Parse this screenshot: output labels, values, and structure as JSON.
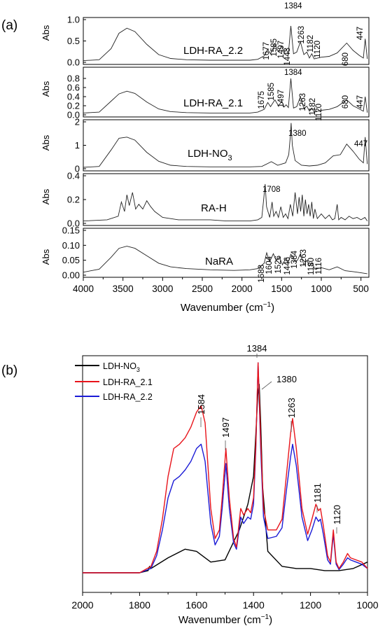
{
  "chart_data": [
    {
      "type": "line",
      "panel_label": "(a)",
      "xlabel": "Wavenumber (cm",
      "xlabel_sup": "−1",
      "xlabel_close": ")",
      "x_ticks": [
        4000,
        3500,
        3000,
        2500,
        2000,
        1500,
        1000,
        500
      ],
      "xlim": [
        4000,
        400
      ],
      "panels": [
        {
          "name": "LDH-RA_2.2",
          "label": "LDH-RA_2.2",
          "label_sub": "",
          "ylabel": "Abs",
          "ylim": [
            0,
            1.0
          ],
          "yticks": [
            "0.0",
            "0.5",
            "1.0"
          ],
          "ytick_values": [
            0,
            0.5,
            1.0
          ],
          "annotations": [
            "1677",
            "1585",
            "1497",
            "1443",
            "1384",
            "1263",
            "1182",
            "1120",
            "680",
            "447"
          ],
          "series": {
            "x": [
              4000,
              3800,
              3650,
              3550,
              3450,
              3350,
              3200,
              3050,
              2900,
              2700,
              2400,
              2100,
              1900,
              1800,
              1720,
              1677,
              1640,
              1585,
              1540,
              1497,
              1470,
              1443,
              1415,
              1384,
              1350,
              1310,
              1263,
              1220,
              1182,
              1150,
              1120,
              1090,
              1000,
              900,
              800,
              680,
              600,
              520,
              470,
              447,
              420
            ],
            "y": [
              0.04,
              0.06,
              0.32,
              0.68,
              0.8,
              0.72,
              0.42,
              0.18,
              0.09,
              0.06,
              0.05,
              0.05,
              0.05,
              0.07,
              0.15,
              0.3,
              0.2,
              0.42,
              0.25,
              0.38,
              0.22,
              0.3,
              0.2,
              0.85,
              0.2,
              0.24,
              0.48,
              0.18,
              0.24,
              0.1,
              0.2,
              0.08,
              0.12,
              0.14,
              0.22,
              0.45,
              0.28,
              0.16,
              0.1,
              0.55,
              0.08
            ]
          }
        },
        {
          "name": "LDH-RA_2.1",
          "label": "LDH-RA_2.1",
          "label_sub": "",
          "ylabel": "Abs",
          "ylim": [
            0,
            1.0
          ],
          "yticks": [
            "0.0",
            "0.2",
            "0.4",
            "0.6",
            "0.8"
          ],
          "ytick_values": [
            0,
            0.2,
            0.4,
            0.6,
            0.8
          ],
          "annotations": [
            "1675",
            "1585",
            "1497",
            "1384",
            "1263",
            "1182",
            "1120",
            "680",
            "447"
          ],
          "series": {
            "x": [
              4000,
              3800,
              3650,
              3550,
              3450,
              3350,
              3200,
              3050,
              2900,
              2700,
              2400,
              2100,
              1900,
              1800,
              1720,
              1675,
              1640,
              1585,
              1540,
              1497,
              1470,
              1443,
              1415,
              1384,
              1350,
              1310,
              1263,
              1220,
              1182,
              1150,
              1120,
              1090,
              1000,
              900,
              800,
              680,
              600,
              520,
              470,
              447,
              420
            ],
            "y": [
              0.04,
              0.06,
              0.3,
              0.46,
              0.52,
              0.47,
              0.28,
              0.13,
              0.07,
              0.05,
              0.04,
              0.04,
              0.04,
              0.06,
              0.12,
              0.27,
              0.18,
              0.33,
              0.2,
              0.3,
              0.17,
              0.22,
              0.16,
              0.8,
              0.15,
              0.18,
              0.4,
              0.14,
              0.19,
              0.08,
              0.15,
              0.06,
              0.1,
              0.12,
              0.18,
              0.33,
              0.2,
              0.13,
              0.08,
              0.4,
              0.05
            ]
          }
        },
        {
          "name": "LDH-NO3",
          "label": "LDH-NO",
          "label_sub": "3",
          "ylabel": "Abs",
          "ylim": [
            0,
            2
          ],
          "yticks": [
            "0",
            "1",
            "2"
          ],
          "ytick_values": [
            0,
            1,
            2
          ],
          "annotations": [
            "1380",
            "447"
          ],
          "series": {
            "x": [
              4000,
              3800,
              3650,
              3550,
              3450,
              3350,
              3200,
              3050,
              2900,
              2700,
              2400,
              2100,
              1900,
              1750,
              1630,
              1550,
              1450,
              1410,
              1390,
              1380,
              1365,
              1330,
              1250,
              1150,
              1050,
              950,
              850,
              760,
              680,
              600,
              520,
              470,
              447,
              420
            ],
            "y": [
              0.06,
              0.1,
              0.8,
              1.3,
              1.35,
              1.22,
              0.7,
              0.32,
              0.15,
              0.1,
              0.08,
              0.08,
              0.08,
              0.1,
              0.3,
              0.15,
              0.25,
              0.6,
              1.4,
              1.95,
              1.0,
              0.35,
              0.15,
              0.12,
              0.15,
              0.25,
              0.55,
              0.6,
              1.05,
              0.75,
              0.4,
              0.25,
              1.35,
              0.2
            ]
          }
        },
        {
          "name": "RA-H",
          "label": "RA-H",
          "label_sub": "",
          "ylabel": "Abs",
          "ylim": [
            0,
            0.4
          ],
          "yticks": [
            "0.0",
            "0.2",
            "0.4"
          ],
          "ytick_values": [
            0,
            0.2,
            0.4
          ],
          "annotations": [
            "1708"
          ],
          "series": {
            "x": [
              4000,
              3700,
              3560,
              3520,
              3480,
              3450,
              3420,
              3380,
              3340,
              3300,
              3250,
              3200,
              3150,
              3100,
              3000,
              2900,
              2800,
              2600,
              2400,
              2200,
              2000,
              1900,
              1800,
              1750,
              1730,
              1708,
              1690,
              1650,
              1620,
              1600,
              1570,
              1540,
              1510,
              1480,
              1450,
              1420,
              1390,
              1360,
              1330,
              1300,
              1280,
              1260,
              1240,
              1220,
              1200,
              1180,
              1160,
              1140,
              1120,
              1100,
              1080,
              1050,
              1000,
              950,
              900,
              860,
              830,
              800,
              780,
              750,
              700,
              650,
              600,
              550,
              500,
              450,
              420
            ],
            "y": [
              0.02,
              0.03,
              0.06,
              0.18,
              0.1,
              0.24,
              0.15,
              0.26,
              0.12,
              0.16,
              0.12,
              0.19,
              0.14,
              0.1,
              0.05,
              0.04,
              0.03,
              0.03,
              0.03,
              0.02,
              0.02,
              0.02,
              0.03,
              0.05,
              0.18,
              0.33,
              0.14,
              0.05,
              0.18,
              0.06,
              0.1,
              0.05,
              0.14,
              0.05,
              0.08,
              0.04,
              0.16,
              0.06,
              0.26,
              0.08,
              0.22,
              0.1,
              0.24,
              0.06,
              0.2,
              0.08,
              0.16,
              0.06,
              0.18,
              0.04,
              0.12,
              0.04,
              0.08,
              0.04,
              0.07,
              0.03,
              0.04,
              0.16,
              0.03,
              0.05,
              0.03,
              0.06,
              0.04,
              0.05,
              0.03,
              0.05,
              0.02
            ]
          }
        },
        {
          "name": "NaRA",
          "label": "NaRA",
          "label_sub": "",
          "ylabel": "Abs",
          "ylim": [
            0,
            0.15
          ],
          "yticks": [
            "0.00",
            "0.05",
            "0.10",
            "0.15"
          ],
          "ytick_values": [
            0,
            0.05,
            0.1,
            0.15
          ],
          "annotations": [
            "1688",
            "1604",
            "1526",
            "1446",
            "1384",
            "1263",
            "1180",
            "1116"
          ],
          "series": {
            "x": [
              4000,
              3800,
              3650,
              3550,
              3450,
              3350,
              3200,
              3050,
              2900,
              2700,
              2400,
              2100,
              1900,
              1800,
              1720,
              1688,
              1650,
              1604,
              1570,
              1526,
              1490,
              1446,
              1420,
              1384,
              1330,
              1300,
              1263,
              1220,
              1180,
              1150,
              1116,
              1080,
              1000,
              900,
              800,
              700,
              600,
              500,
              420
            ],
            "y": [
              0.01,
              0.02,
              0.06,
              0.09,
              0.097,
              0.09,
              0.065,
              0.04,
              0.028,
              0.022,
              0.018,
              0.016,
              0.018,
              0.022,
              0.04,
              0.075,
              0.045,
              0.072,
              0.05,
              0.06,
              0.035,
              0.058,
              0.04,
              0.07,
              0.045,
              0.05,
              0.072,
              0.035,
              0.05,
              0.03,
              0.04,
              0.02,
              0.025,
              0.018,
              0.028,
              0.015,
              0.012,
              0.008,
              0.005
            ]
          }
        }
      ]
    },
    {
      "type": "line",
      "panel_label": "(b)",
      "xlabel": "Wavenumber (cm",
      "xlabel_sup": "−1",
      "xlabel_close": ")",
      "x_ticks": [
        2000,
        1800,
        1600,
        1400,
        1200,
        1000
      ],
      "xlim": [
        2000,
        1000
      ],
      "ylim": [
        0,
        1.0
      ],
      "legend": [
        {
          "name": "LDH-NO",
          "sub": "3",
          "color": "#000000"
        },
        {
          "name": "LDH-RA_2.1",
          "sub": "",
          "color": "#e8141b"
        },
        {
          "name": "LDH-RA_2.2",
          "sub": "",
          "color": "#1b1bd6"
        }
      ],
      "annotations": [
        "1584",
        "1497",
        "1384",
        "1380",
        "1263",
        "1181",
        "1120"
      ],
      "series": [
        {
          "name": "LDH-NO3",
          "color": "#000000",
          "x": [
            2000,
            1800,
            1770,
            1765,
            1760,
            1700,
            1640,
            1600,
            1550,
            1500,
            1450,
            1420,
            1400,
            1392,
            1385,
            1380,
            1375,
            1368,
            1350,
            1300,
            1250,
            1200,
            1150,
            1100,
            1050,
            1000
          ],
          "y": [
            0.0,
            0.0,
            0.01,
            0.03,
            0.02,
            0.07,
            0.11,
            0.1,
            0.05,
            0.06,
            0.2,
            0.32,
            0.45,
            0.65,
            0.83,
            0.88,
            0.7,
            0.4,
            0.1,
            0.03,
            0.02,
            0.02,
            0.01,
            0.01,
            0.02,
            0.05
          ]
        },
        {
          "name": "LDH-RA_2.1",
          "color": "#e8141b",
          "x": [
            2000,
            1800,
            1760,
            1740,
            1720,
            1700,
            1680,
            1660,
            1640,
            1620,
            1600,
            1584,
            1570,
            1550,
            1535,
            1520,
            1510,
            1497,
            1485,
            1470,
            1460,
            1445,
            1435,
            1430,
            1420,
            1410,
            1400,
            1392,
            1384,
            1375,
            1365,
            1350,
            1320,
            1300,
            1285,
            1270,
            1263,
            1250,
            1230,
            1210,
            1195,
            1181,
            1172,
            1165,
            1155,
            1140,
            1130,
            1120,
            1110,
            1100,
            1085,
            1070,
            1060,
            1040,
            1020,
            1000
          ],
          "y": [
            0.0,
            0.0,
            0.03,
            0.1,
            0.25,
            0.45,
            0.58,
            0.6,
            0.63,
            0.68,
            0.75,
            0.78,
            0.7,
            0.3,
            0.16,
            0.2,
            0.35,
            0.58,
            0.35,
            0.16,
            0.12,
            0.3,
            0.27,
            0.28,
            0.3,
            0.28,
            0.35,
            0.6,
            0.98,
            0.62,
            0.3,
            0.2,
            0.2,
            0.25,
            0.45,
            0.65,
            0.72,
            0.58,
            0.3,
            0.18,
            0.25,
            0.32,
            0.29,
            0.3,
            0.22,
            0.08,
            0.05,
            0.2,
            0.05,
            0.02,
            0.05,
            0.09,
            0.07,
            0.06,
            0.05,
            0.02
          ]
        },
        {
          "name": "LDH-RA_2.2",
          "color": "#1b1bd6",
          "x": [
            2000,
            1800,
            1760,
            1740,
            1720,
            1700,
            1680,
            1660,
            1640,
            1620,
            1600,
            1584,
            1570,
            1550,
            1535,
            1520,
            1510,
            1497,
            1485,
            1470,
            1460,
            1445,
            1435,
            1430,
            1420,
            1410,
            1400,
            1392,
            1384,
            1375,
            1365,
            1350,
            1320,
            1300,
            1285,
            1270,
            1263,
            1250,
            1230,
            1210,
            1195,
            1181,
            1172,
            1165,
            1155,
            1140,
            1130,
            1120,
            1110,
            1100,
            1085,
            1070,
            1060,
            1040,
            1020,
            1000
          ],
          "y": [
            0.0,
            0.0,
            0.02,
            0.08,
            0.2,
            0.35,
            0.43,
            0.45,
            0.48,
            0.52,
            0.58,
            0.6,
            0.52,
            0.23,
            0.13,
            0.17,
            0.3,
            0.51,
            0.3,
            0.14,
            0.11,
            0.26,
            0.23,
            0.24,
            0.26,
            0.25,
            0.32,
            0.58,
            0.98,
            0.58,
            0.26,
            0.16,
            0.17,
            0.21,
            0.38,
            0.54,
            0.6,
            0.5,
            0.26,
            0.15,
            0.2,
            0.26,
            0.24,
            0.25,
            0.18,
            0.06,
            0.04,
            0.18,
            0.04,
            0.015,
            0.04,
            0.07,
            0.06,
            0.05,
            0.04,
            0.02
          ]
        }
      ]
    }
  ]
}
